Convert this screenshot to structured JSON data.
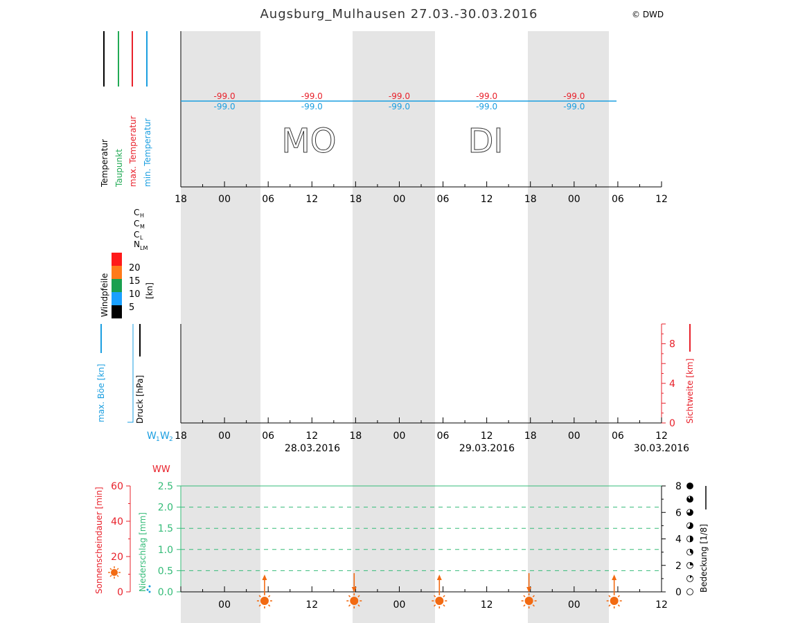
{
  "title": "Augsburg_Mulhausen 27.03.-30.03.2016",
  "copyright": "© DWD",
  "colors": {
    "temperature": "#000000",
    "dewpoint": "#22aa55",
    "max_temp": "#e8202a",
    "min_temp": "#1a9ee0",
    "night_band": "#e5e5e5",
    "precip": "#33bb77",
    "sunshine": "#e8202a",
    "sun_icon": "#f26a12"
  },
  "panel_temperature": {
    "legend": [
      "Temperatur",
      "Taupunkt",
      "max. Temperatur",
      "min. Temperatur"
    ],
    "day_labels": [
      "MO",
      "DI"
    ]
  },
  "panel_clouds": {
    "legend": {
      "ch": "C",
      "ch_sub": "H",
      "cm": "C",
      "cm_sub": "M",
      "cl": "C",
      "cl_sub": "L",
      "n": "N",
      "n_sub": "LM"
    }
  },
  "wind_legend": {
    "title": "Windpfeile",
    "unit": "[kn]",
    "levels": [
      {
        "label": "20",
        "color": "#ff1a1a"
      },
      {
        "label": "15",
        "color": "#ff7a1a"
      },
      {
        "label": "10",
        "color": "#1aa050"
      },
      {
        "label": "5",
        "color": "#1aa0ff"
      },
      {
        "label": "",
        "color": "#000000"
      }
    ]
  },
  "panel_pressure": {
    "left_labels": {
      "gust": "max. Böe [kn]",
      "pressure": "Druck [hPa]",
      "ww": "W",
      "ww_sub1": "1",
      "ww_mid": "W",
      "ww_sub2": "2"
    },
    "right_label": "Sichtweite [km]",
    "right_ticks": [
      "0",
      "4",
      "8"
    ],
    "date_labels": [
      "28.03.2016",
      "29.03.2016",
      "30.03.2016"
    ]
  },
  "panel_precip": {
    "ww_label": "WW",
    "sunshine_label": "Sonnenscheindauer [min]",
    "precip_label": "Niederschlag [mm]",
    "cover_label": "Bedeckung [1/8]"
  },
  "chart_data": [
    {
      "type": "line",
      "panel": "temperature",
      "x_axis_ticks": [
        "18",
        "00",
        "06",
        "12",
        "18",
        "00",
        "06",
        "12",
        "18",
        "00",
        "06",
        "12"
      ],
      "series": [
        {
          "name": "max. Temperatur",
          "x": [
            "00",
            "12",
            "00",
            "12",
            "00"
          ],
          "labels": [
            "-99.0",
            "-99.0",
            "-99.0",
            "-99.0",
            "-99.0"
          ]
        },
        {
          "name": "min. Temperatur",
          "x": [
            "00",
            "12",
            "00",
            "12",
            "00"
          ],
          "labels": [
            "-99.0",
            "-99.0",
            "-99.0",
            "-99.0",
            "-99.0"
          ]
        }
      ]
    },
    {
      "type": "line",
      "panel": "pressure_visibility",
      "x_axis_ticks": [
        "18",
        "00",
        "06",
        "12",
        "18",
        "00",
        "06",
        "12",
        "18",
        "00",
        "06",
        "12"
      ],
      "right_axis": {
        "label": "Sichtweite [km]",
        "ticks": [
          0,
          4,
          8
        ],
        "ylim": [
          0,
          10
        ]
      },
      "series": []
    },
    {
      "type": "bar",
      "panel": "precipitation_sunshine",
      "x_axis_ticks": [
        "00",
        "12",
        "00",
        "12",
        "00",
        "12"
      ],
      "left_axis_sunshine": {
        "ticks": [
          0,
          20,
          40,
          60
        ],
        "ylim": [
          0,
          60
        ]
      },
      "left_axis_precip": {
        "ticks": [
          "0.0",
          "0.5",
          "1.0",
          "1.5",
          "2.0",
          "2.5"
        ],
        "ylim": [
          0,
          2.5
        ]
      },
      "right_axis_cover": {
        "ticks": [
          0,
          2,
          4,
          6,
          8
        ],
        "ylim": [
          0,
          8
        ]
      },
      "sun_events": [
        {
          "time_h": 29.5,
          "kind": "sunrise"
        },
        {
          "time_h": 41.8,
          "kind": "sunset"
        },
        {
          "time_h": 53.5,
          "kind": "sunrise"
        },
        {
          "time_h": 65.8,
          "kind": "sunset"
        },
        {
          "time_h": 77.5,
          "kind": "sunrise"
        }
      ],
      "series": []
    }
  ]
}
